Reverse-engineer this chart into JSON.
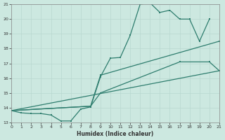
{
  "xlabel": "Humidex (Indice chaleur)",
  "xlim": [
    0,
    21
  ],
  "ylim": [
    13,
    21
  ],
  "xticks": [
    0,
    1,
    2,
    3,
    4,
    5,
    6,
    7,
    8,
    9,
    10,
    11,
    12,
    13,
    14,
    15,
    16,
    17,
    18,
    19,
    20,
    21
  ],
  "yticks": [
    13,
    14,
    15,
    16,
    17,
    18,
    19,
    20,
    21
  ],
  "bg_color": "#cce8e0",
  "grid_color": "#b8d8d0",
  "line_color": "#2e7d6e",
  "line1_x": [
    0,
    1,
    2,
    3,
    4,
    5,
    6,
    7,
    8,
    9,
    10,
    11,
    12,
    13,
    14,
    15,
    16,
    17,
    18,
    19,
    20
  ],
  "line1_y": [
    13.8,
    13.65,
    13.6,
    13.6,
    13.5,
    13.1,
    13.1,
    13.9,
    14.05,
    16.1,
    17.35,
    17.4,
    18.9,
    21.0,
    21.1,
    20.45,
    20.6,
    20.0,
    20.0,
    18.5,
    20.0
  ],
  "line2_x": [
    0,
    8,
    9,
    21
  ],
  "line2_y": [
    13.8,
    14.1,
    16.2,
    18.5
  ],
  "line3_x": [
    0,
    8,
    9,
    17,
    20,
    21
  ],
  "line3_y": [
    13.8,
    14.1,
    15.0,
    17.1,
    17.1,
    16.5
  ],
  "line4_x": [
    0,
    21
  ],
  "line4_y": [
    13.8,
    16.5
  ]
}
